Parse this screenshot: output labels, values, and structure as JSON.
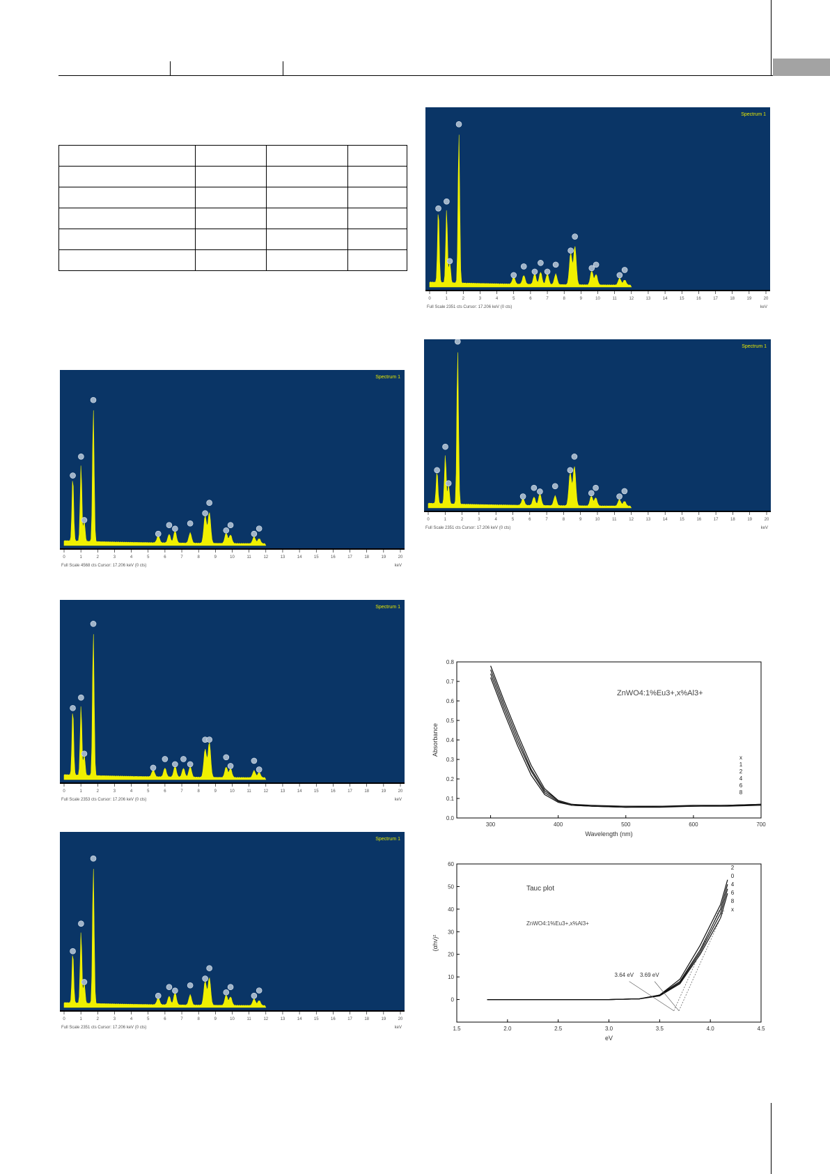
{
  "header": {
    "tabs": [
      "",
      ""
    ]
  },
  "table": {
    "col_widths_note": "",
    "rows": [
      [
        "",
        "",
        "",
        ""
      ],
      [
        "",
        "",
        "",
        ""
      ],
      [
        "",
        "",
        "",
        ""
      ],
      [
        "",
        "",
        "",
        ""
      ],
      [
        "",
        "",
        "",
        ""
      ],
      [
        "",
        "",
        "",
        ""
      ]
    ]
  },
  "colors": {
    "eds_bg": "#0a3566",
    "eds_trace": "#f0f000",
    "black": "#000000"
  },
  "eds_spectra": [
    {
      "id": "eds-1",
      "corner_label": "Spectrum 1",
      "footer": "Full Scale 4568 cts Cursor: 17.206 keV (0 cts)",
      "unit": "keV",
      "ticks": [
        "0",
        "1",
        "2",
        "3",
        "4",
        "5",
        "6",
        "7",
        "8",
        "9",
        "10",
        "11",
        "12",
        "13",
        "14",
        "15",
        "16",
        "17",
        "18",
        "19",
        "20"
      ],
      "peaks_kev": [
        0.52,
        1.01,
        1.2,
        1.74,
        5.6,
        6.25,
        6.6,
        7.5,
        8.39,
        8.64,
        9.64,
        9.9,
        11.3,
        11.6
      ],
      "peak_heights": [
        0.38,
        0.45,
        0.12,
        0.78,
        0.04,
        0.05,
        0.07,
        0.06,
        0.16,
        0.18,
        0.06,
        0.05,
        0.04,
        0.03
      ]
    },
    {
      "id": "eds-2",
      "corner_label": "Spectrum 1",
      "footer": "Full Scale 2353 cts Cursor: 17.206 keV (0 cts)",
      "unit": "keV",
      "ticks": [
        "0",
        "1",
        "2",
        "3",
        "4",
        "5",
        "6",
        "7",
        "8",
        "9",
        "10",
        "11",
        "12",
        "13",
        "14",
        "15",
        "16",
        "17",
        "18",
        "19",
        "20"
      ],
      "peaks_kev": [
        0.52,
        1.01,
        1.2,
        1.74,
        5.3,
        6.0,
        6.6,
        7.1,
        7.5,
        8.39,
        8.64,
        9.64,
        9.9,
        11.3,
        11.6
      ],
      "peak_heights": [
        0.38,
        0.4,
        0.12,
        0.82,
        0.04,
        0.05,
        0.06,
        0.05,
        0.06,
        0.16,
        0.2,
        0.06,
        0.05,
        0.04,
        0.03
      ]
    },
    {
      "id": "eds-3",
      "corner_label": "Spectrum 1",
      "footer": "Full Scale 2351 cts Cursor: 17.206 keV (0 cts)",
      "unit": "keV",
      "ticks": [
        "0",
        "1",
        "2",
        "3",
        "4",
        "5",
        "6",
        "7",
        "8",
        "9",
        "10",
        "11",
        "12",
        "13",
        "14",
        "15",
        "16",
        "17",
        "18",
        "19",
        "20"
      ],
      "peaks_kev": [
        0.52,
        1.01,
        1.2,
        1.74,
        5.6,
        6.25,
        6.6,
        7.5,
        8.39,
        8.64,
        9.64,
        9.9,
        11.3,
        11.6
      ],
      "peak_heights": [
        0.3,
        0.42,
        0.12,
        0.8,
        0.04,
        0.05,
        0.07,
        0.06,
        0.14,
        0.16,
        0.06,
        0.05,
        0.04,
        0.03
      ]
    },
    {
      "id": "eds-4",
      "corner_label": "Spectrum 1",
      "footer": "Full Scale 2351 cts Cursor: 17.206 keV (0 cts)",
      "unit": "keV",
      "ticks": [
        "0",
        "1",
        "2",
        "3",
        "4",
        "5",
        "6",
        "7",
        "8",
        "9",
        "10",
        "11",
        "12",
        "13",
        "14",
        "15",
        "16",
        "17",
        "18",
        "19",
        "20"
      ],
      "peaks_kev": [
        0.52,
        1.01,
        1.2,
        1.74,
        5.0,
        5.6,
        6.25,
        6.6,
        7.0,
        7.5,
        8.39,
        8.64,
        9.64,
        9.9,
        11.3,
        11.6
      ],
      "peak_heights": [
        0.42,
        0.42,
        0.12,
        0.86,
        0.04,
        0.05,
        0.06,
        0.07,
        0.06,
        0.06,
        0.18,
        0.22,
        0.08,
        0.06,
        0.04,
        0.03
      ]
    },
    {
      "id": "eds-5",
      "corner_label": "Spectrum 1",
      "footer": "Full Scale 2351 cts Cursor: 17.206 keV (0 cts)",
      "unit": "keV",
      "ticks": [
        "0",
        "1",
        "2",
        "3",
        "4",
        "5",
        "6",
        "7",
        "8",
        "9",
        "10",
        "11",
        "12",
        "13",
        "14",
        "15",
        "16",
        "17",
        "18",
        "19",
        "20"
      ],
      "peaks_kev": [
        0.52,
        1.01,
        1.2,
        1.74,
        5.6,
        6.25,
        6.6,
        7.5,
        8.39,
        8.64,
        9.64,
        9.9,
        11.3,
        11.6
      ],
      "peak_heights": [
        0.2,
        0.3,
        0.12,
        0.94,
        0.04,
        0.05,
        0.07,
        0.06,
        0.2,
        0.24,
        0.06,
        0.05,
        0.04,
        0.03
      ]
    }
  ],
  "chart_data": [
    {
      "type": "line",
      "title": "",
      "annotation": "ZnWO4:1%Eu3+,x%Al3+",
      "xlabel": "Wavelength (nm)",
      "ylabel": "Absorbance",
      "xlim": [
        250,
        700
      ],
      "ylim": [
        0.0,
        0.8
      ],
      "xticks": [
        "300",
        "400",
        "500",
        "600",
        "700"
      ],
      "yticks": [
        "0.0",
        "0.1",
        "0.2",
        "0.3",
        "0.4",
        "0.5",
        "0.6",
        "0.7",
        "0.8"
      ],
      "legend": [
        "x",
        "1",
        "2",
        "4",
        "6",
        "8"
      ],
      "x": [
        300,
        320,
        340,
        360,
        380,
        400,
        420,
        450,
        500,
        550,
        600,
        650,
        700
      ],
      "series": [
        {
          "values": [
            0.78,
            0.6,
            0.43,
            0.27,
            0.15,
            0.09,
            0.07,
            0.065,
            0.06,
            0.06,
            0.06,
            0.065,
            0.07
          ]
        },
        {
          "values": [
            0.76,
            0.58,
            0.41,
            0.25,
            0.14,
            0.09,
            0.07,
            0.06,
            0.06,
            0.06,
            0.065,
            0.065,
            0.07
          ]
        },
        {
          "values": [
            0.74,
            0.56,
            0.39,
            0.24,
            0.13,
            0.085,
            0.065,
            0.06,
            0.055,
            0.06,
            0.06,
            0.065,
            0.065
          ]
        },
        {
          "values": [
            0.72,
            0.54,
            0.37,
            0.22,
            0.12,
            0.08,
            0.065,
            0.06,
            0.055,
            0.055,
            0.06,
            0.06,
            0.065
          ]
        }
      ]
    },
    {
      "type": "line",
      "title": "Tauc plot",
      "annotation": "ZnWO4:1%Eu3+,x%Al3+",
      "xlabel": "eV",
      "ylabel": "(αhν)²",
      "xlim": [
        1.5,
        4.5
      ],
      "ylim": [
        -10,
        60
      ],
      "xticks": [
        "1.5",
        "2.0",
        "2.5",
        "3.0",
        "3.5",
        "4.0",
        "4.5"
      ],
      "yticks": [
        "0",
        "10",
        "20",
        "30",
        "40",
        "50",
        "60"
      ],
      "legend": [
        "2",
        "0",
        "4",
        "6",
        "8",
        "x"
      ],
      "callouts": [
        "3.64 eV",
        "3.69 eV"
      ],
      "x": [
        1.8,
        2.0,
        2.5,
        3.0,
        3.3,
        3.5,
        3.7,
        3.9,
        4.1,
        4.17
      ],
      "series": [
        {
          "values": [
            0,
            0,
            0,
            0,
            0.3,
            2,
            9,
            24,
            42,
            53
          ]
        },
        {
          "values": [
            0,
            0,
            0,
            0,
            0.3,
            2,
            8,
            22,
            40,
            51
          ]
        },
        {
          "values": [
            0,
            0,
            0,
            0,
            0.3,
            1.8,
            7.5,
            21,
            38,
            49
          ]
        },
        {
          "values": [
            0,
            0,
            0,
            0,
            0.3,
            1.6,
            7,
            20,
            36,
            47
          ]
        }
      ]
    }
  ],
  "page_number": ""
}
